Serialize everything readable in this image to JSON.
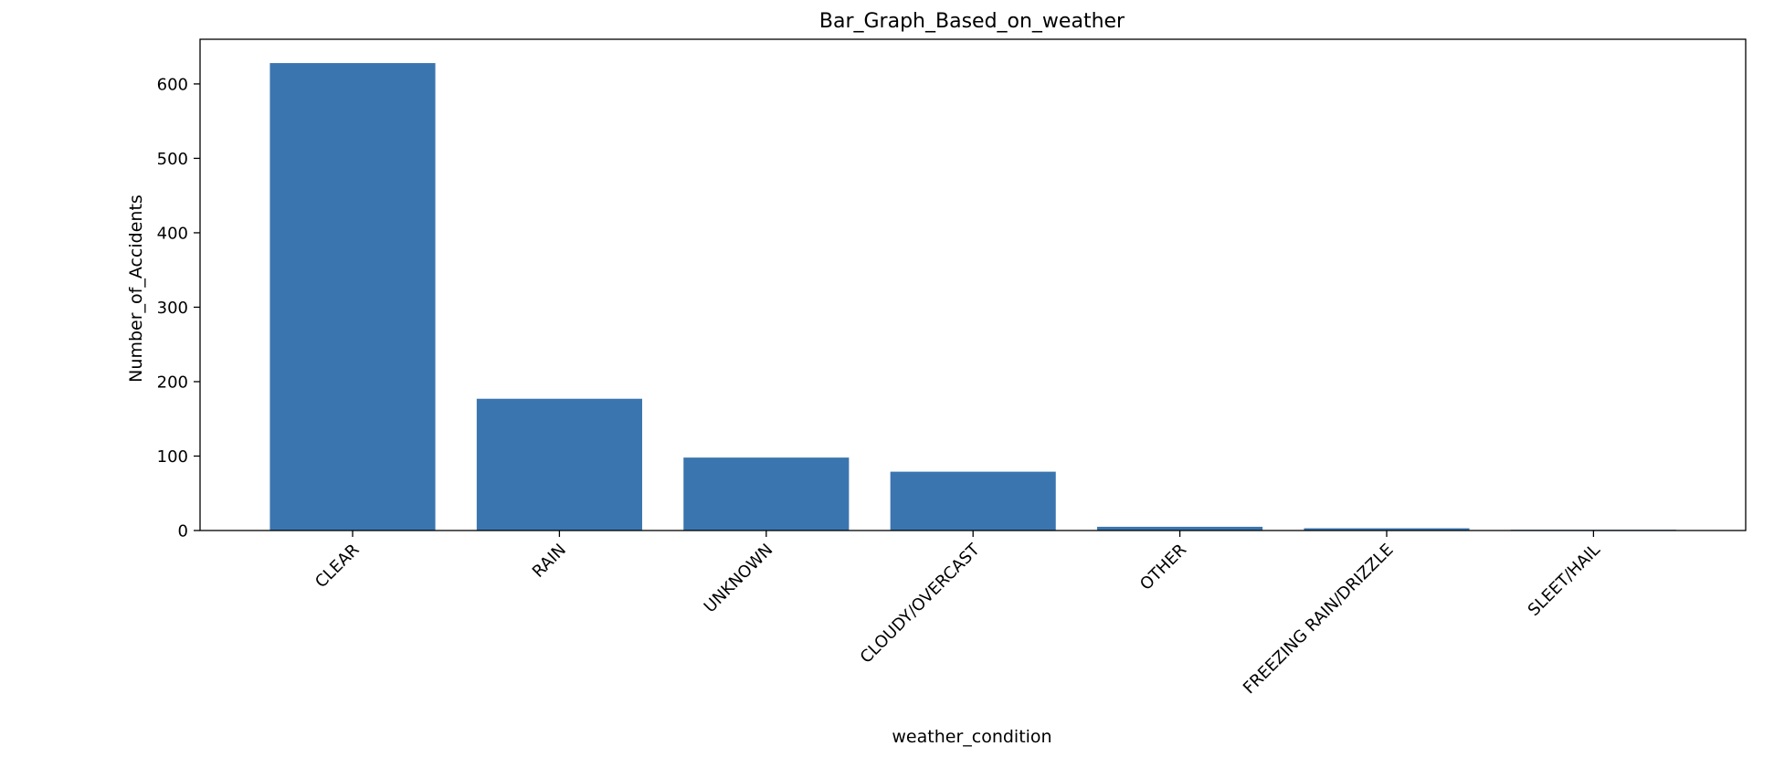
{
  "chart_data": {
    "type": "bar",
    "title": "Bar_Graph_Based_on_weather",
    "xlabel": "weather_condition",
    "ylabel": "Number_of_Accidents",
    "categories": [
      "CLEAR",
      "RAIN",
      "UNKNOWN",
      "CLOUDY/OVERCAST",
      "OTHER",
      "FREEZING RAIN/DRIZZLE",
      "SLEET/HAIL"
    ],
    "values": [
      628,
      177,
      98,
      79,
      5,
      3,
      1
    ],
    "ylim": [
      0,
      660
    ],
    "yticks": [
      0,
      100,
      200,
      300,
      400,
      500,
      600
    ],
    "bar_color": "#3a75af",
    "grid": false,
    "legend": false
  }
}
